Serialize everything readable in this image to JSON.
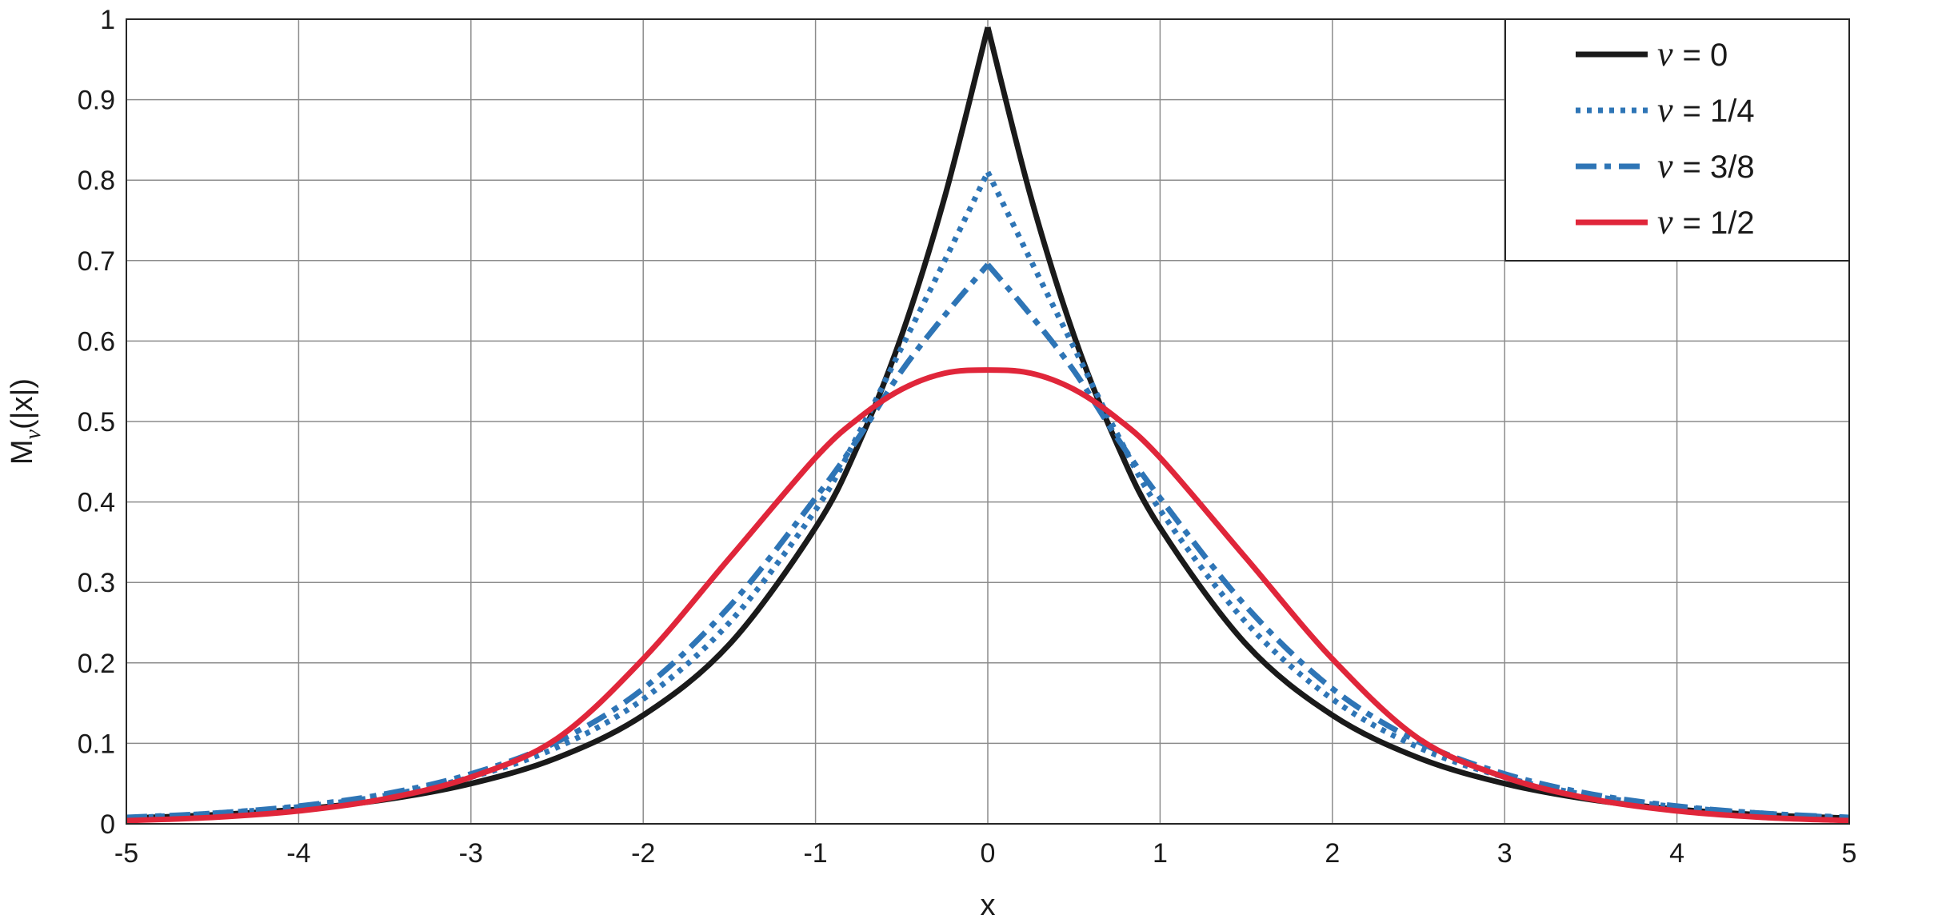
{
  "chart_data": {
    "type": "line",
    "title": "",
    "xlabel": "x",
    "ylabel": "M_ν(|x|)",
    "ylabel_parts": {
      "main": "M",
      "sub": "ν",
      "tail": "(|x|)"
    },
    "xlim": [
      -5,
      5
    ],
    "ylim": [
      0,
      1
    ],
    "xticks": [
      -5,
      -4,
      -3,
      -2,
      -1,
      0,
      1,
      2,
      3,
      4,
      5
    ],
    "yticks": [
      0,
      0.1,
      0.2,
      0.3,
      0.4,
      0.5,
      0.6,
      0.7,
      0.8,
      0.9,
      1
    ],
    "xtick_labels": [
      "-5",
      "-4",
      "-3",
      "-2",
      "-1",
      "0",
      "1",
      "2",
      "3",
      "4",
      "5"
    ],
    "ytick_labels": [
      "0",
      "0.1",
      "0.2",
      "0.3",
      "0.4",
      "0.5",
      "0.6",
      "0.7",
      "0.8",
      "0.9",
      "1"
    ],
    "grid": true,
    "legend_position": "top-right",
    "x": [
      -5,
      -4.5,
      -4,
      -3.5,
      -3,
      -2.5,
      -2,
      -1.5,
      -1,
      -0.75,
      -0.5,
      -0.25,
      0,
      0.25,
      0.5,
      0.75,
      1,
      1.5,
      2,
      2.5,
      3,
      3.5,
      4,
      4.5,
      5
    ],
    "series": [
      {
        "legend_symbol": "ν",
        "legend_value": "= 0",
        "color": "#1a1a1a",
        "style": "solid",
        "values": [
          0.007,
          0.011,
          0.018,
          0.03,
          0.05,
          0.082,
          0.135,
          0.223,
          0.368,
          0.472,
          0.607,
          0.779,
          0.99,
          0.779,
          0.607,
          0.472,
          0.368,
          0.223,
          0.135,
          0.082,
          0.05,
          0.03,
          0.018,
          0.011,
          0.007
        ]
      },
      {
        "legend_symbol": "ν",
        "legend_value": "= 1/4",
        "color": "#2e75b6",
        "style": "dotted",
        "values": [
          0.007,
          0.013,
          0.021,
          0.035,
          0.058,
          0.095,
          0.155,
          0.25,
          0.39,
          0.485,
          0.592,
          0.7,
          0.81,
          0.7,
          0.592,
          0.485,
          0.39,
          0.25,
          0.155,
          0.095,
          0.058,
          0.035,
          0.021,
          0.013,
          0.007
        ]
      },
      {
        "legend_symbol": "ν",
        "legend_value": "= 3/8",
        "color": "#2e75b6",
        "style": "dashdot",
        "values": [
          0.008,
          0.013,
          0.022,
          0.037,
          0.062,
          0.102,
          0.168,
          0.27,
          0.405,
          0.48,
          0.563,
          0.632,
          0.695,
          0.632,
          0.563,
          0.48,
          0.405,
          0.27,
          0.168,
          0.102,
          0.062,
          0.037,
          0.022,
          0.013,
          0.008
        ]
      },
      {
        "legend_symbol": "ν",
        "legend_value": "= 1/2",
        "color": "#e0263a",
        "style": "solid",
        "values": [
          0.004,
          0.008,
          0.016,
          0.031,
          0.058,
          0.106,
          0.205,
          0.33,
          0.455,
          0.504,
          0.54,
          0.56,
          0.564,
          0.56,
          0.54,
          0.504,
          0.455,
          0.33,
          0.205,
          0.106,
          0.058,
          0.031,
          0.016,
          0.008,
          0.004
        ]
      }
    ]
  }
}
